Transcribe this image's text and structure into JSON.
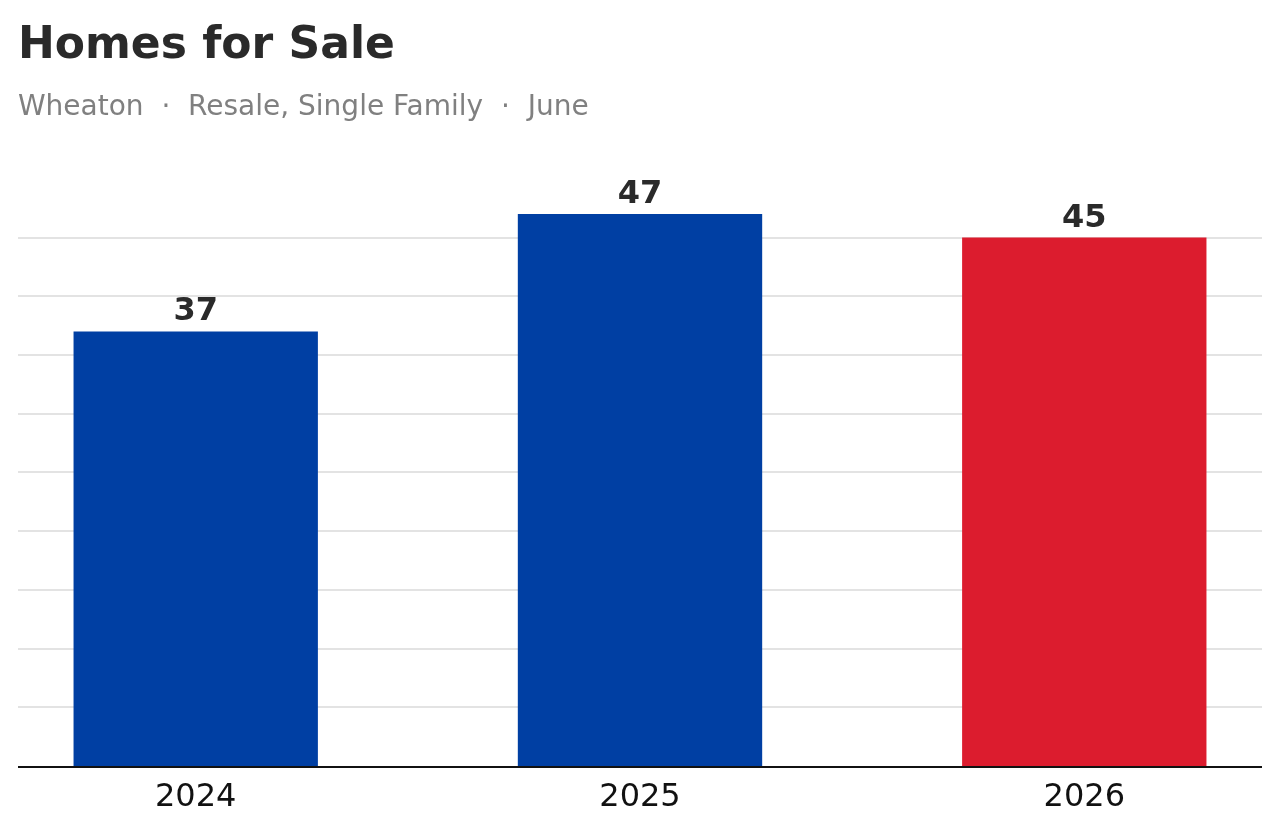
{
  "chart_data": {
    "type": "bar",
    "title": "Homes for Sale",
    "subtitle": "Wheaton  ·  Resale, Single Family  ·  June",
    "categories": [
      "2024",
      "2025",
      "2026"
    ],
    "values": [
      37,
      47,
      45
    ],
    "colors": [
      "#003fa3",
      "#003fa3",
      "#dc1c2e"
    ],
    "data_labels": true,
    "grid": "y",
    "tick_labels": "x",
    "legend": false
  }
}
